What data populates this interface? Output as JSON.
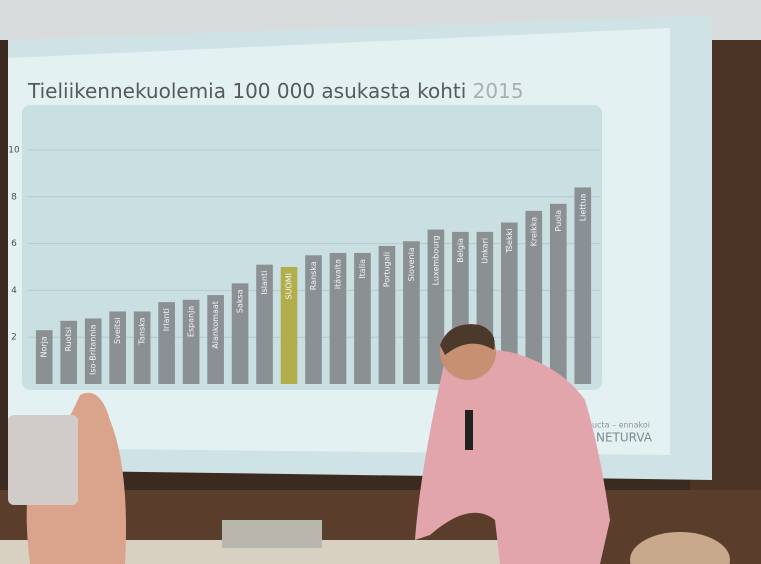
{
  "chart_data": {
    "type": "bar",
    "title": "Tieliikennekuolemia 100 000 asukasta kohti",
    "title_year": "2015",
    "categories": [
      "Norja",
      "Ruotsi",
      "Iso-Britannia",
      "Sveitsi",
      "Tanska",
      "Irlanti",
      "Espanja",
      "Alankomaat",
      "Saksa",
      "Islanti",
      "SUOMI",
      "Ranska",
      "Itävalta",
      "Italia",
      "Portugali",
      "Slovenia",
      "Luxembourg",
      "Belgia",
      "Unkari",
      "Tšekki",
      "Kreikka",
      "Puola",
      "Liettua"
    ],
    "values": [
      2.3,
      2.7,
      2.8,
      3.1,
      3.1,
      3.5,
      3.6,
      3.8,
      4.3,
      5.1,
      5.0,
      5.5,
      5.6,
      5.6,
      5.9,
      6.1,
      6.6,
      6.5,
      6.5,
      6.9,
      7.4,
      7.7,
      8.4
    ],
    "colors": [
      "#8b9093",
      "#8b9093",
      "#8b9093",
      "#8b9093",
      "#8b9093",
      "#8b9093",
      "#8b9093",
      "#8b9093",
      "#8b9093",
      "#8b9093",
      "#b3ae4c",
      "#8b9093",
      "#8b9093",
      "#8b9093",
      "#8b9093",
      "#8b9093",
      "#8b9093",
      "#8b9093",
      "#8b9093",
      "#8b9093",
      "#8b9093",
      "#8b9093",
      "#8b9093"
    ],
    "ylim": [
      0,
      10
    ],
    "yticks": [
      2,
      4,
      6,
      8,
      10
    ],
    "grid": true,
    "footer_tagline": "ucta – ennakoi",
    "footer_brand": "NETURVA"
  }
}
